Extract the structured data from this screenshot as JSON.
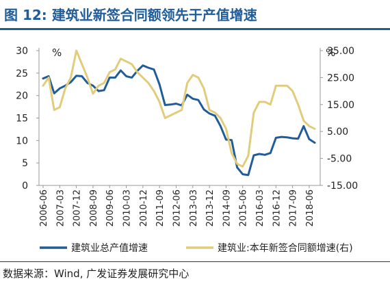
{
  "title": "图 12:  建筑业新签合同额领先于产值增速",
  "source": "数据来源：Wind, 广发证券发展研究中心",
  "colors": {
    "blue": "#1f5c99",
    "gold": "#e0cc7a",
    "axis": "#999999"
  },
  "chart_data": {
    "type": "line",
    "left_unit": "%",
    "right_unit": "%",
    "left_ylim": [
      0,
      30
    ],
    "left_ticks": [
      "0",
      "5",
      "10",
      "15",
      "20",
      "25",
      "30"
    ],
    "right_ylim": [
      -15,
      35
    ],
    "right_ticks": [
      "-15.00",
      "-5.00",
      "5.00",
      "15.00",
      "25.00",
      "35.00"
    ],
    "x_labels": [
      "2006-06",
      "2007-03",
      "2007-12",
      "2008-09",
      "2009-06",
      "2010-03",
      "2010-12",
      "2011-09",
      "2012-06",
      "2013-03",
      "2013-12",
      "2014-09",
      "2015-06",
      "2016-03",
      "2016-12",
      "2017-09",
      "2018-06"
    ],
    "legend_position": "bottom",
    "series": [
      {
        "name": "建筑业总产值增速",
        "axis": "left",
        "color": "#1f5c99",
        "x": [
          "2006-06",
          "2006-09",
          "2006-12",
          "2007-03",
          "2007-06",
          "2007-09",
          "2007-12",
          "2008-03",
          "2008-06",
          "2008-09",
          "2008-12",
          "2009-03",
          "2009-06",
          "2009-09",
          "2009-12",
          "2010-03",
          "2010-06",
          "2010-09",
          "2010-12",
          "2011-03",
          "2011-06",
          "2011-09",
          "2011-12",
          "2012-03",
          "2012-06",
          "2012-09",
          "2012-12",
          "2013-03",
          "2013-06",
          "2013-09",
          "2013-12",
          "2014-03",
          "2014-06",
          "2014-09",
          "2014-12",
          "2015-03",
          "2015-06",
          "2015-09",
          "2015-12",
          "2016-03",
          "2016-06",
          "2016-09",
          "2016-12",
          "2017-03",
          "2017-06",
          "2017-09",
          "2017-12",
          "2018-03",
          "2018-06",
          "2018-09"
        ],
        "values": [
          23.8,
          24.3,
          20.5,
          21.6,
          22.2,
          23.0,
          24.4,
          24.3,
          22.8,
          22.2,
          21.0,
          21.2,
          24.0,
          24.0,
          25.6,
          24.3,
          24.0,
          25.5,
          26.7,
          26.2,
          25.8,
          22.5,
          17.9,
          18.0,
          18.2,
          17.8,
          20.2,
          19.3,
          19.0,
          16.9,
          16.0,
          15.5,
          13.2,
          10.2,
          10.1,
          4.0,
          2.5,
          2.3,
          6.7,
          7.0,
          6.8,
          7.2,
          10.6,
          10.8,
          10.7,
          10.5,
          10.4,
          13.2,
          10.3,
          9.5
        ]
      },
      {
        "name": "建筑业:本年新签合同额增速(右)",
        "axis": "right",
        "color": "#e0cc7a",
        "x": [
          "2006-06",
          "2006-09",
          "2006-12",
          "2007-03",
          "2007-06",
          "2007-09",
          "2007-12",
          "2008-03",
          "2008-06",
          "2008-09",
          "2008-12",
          "2009-03",
          "2009-06",
          "2009-09",
          "2009-12",
          "2010-03",
          "2010-06",
          "2010-09",
          "2010-12",
          "2011-03",
          "2011-06",
          "2011-09",
          "2011-12",
          "2012-03",
          "2012-06",
          "2012-09",
          "2012-12",
          "2013-03",
          "2013-06",
          "2013-09",
          "2013-12",
          "2014-03",
          "2014-06",
          "2014-09",
          "2014-12",
          "2015-03",
          "2015-06",
          "2015-09",
          "2015-12",
          "2016-03",
          "2016-06",
          "2016-09",
          "2016-12",
          "2017-03",
          "2017-06",
          "2017-09",
          "2017-12",
          "2018-03",
          "2018-06",
          "2018-09"
        ],
        "values": [
          22.0,
          25.0,
          13.0,
          14.0,
          21.0,
          25.0,
          35.0,
          30.0,
          25.0,
          19.0,
          22.0,
          23.0,
          27.0,
          28.0,
          32.0,
          31.0,
          30.0,
          27.0,
          25.0,
          23.0,
          20.0,
          16.0,
          10.0,
          11.0,
          12.0,
          13.0,
          23.0,
          26.0,
          25.0,
          21.0,
          13.0,
          12.0,
          10.0,
          6.0,
          -3.0,
          -7.0,
          -8.0,
          -4.0,
          12.0,
          16.0,
          16.0,
          15.0,
          22.0,
          22.0,
          22.0,
          20.0,
          15.0,
          9.0,
          7.0,
          6.0
        ]
      }
    ]
  }
}
